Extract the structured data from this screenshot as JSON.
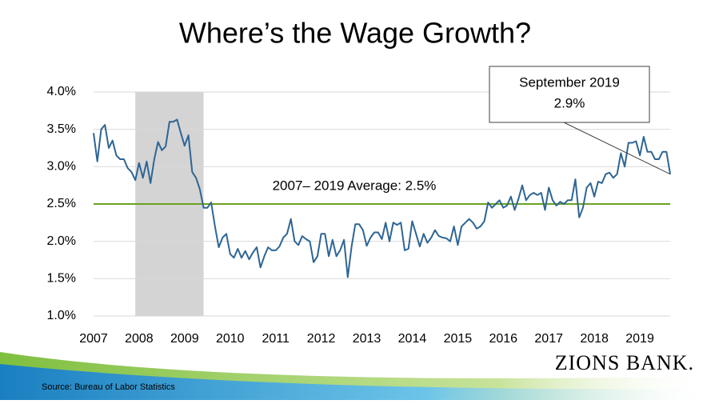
{
  "chart_data": {
    "type": "line",
    "title": "Where’s the Wage Growth?",
    "categories": [
      "2007",
      null,
      null,
      null,
      null,
      null,
      null,
      null,
      null,
      null,
      null,
      null,
      "2008",
      null,
      null,
      null,
      null,
      null,
      null,
      null,
      null,
      null,
      null,
      null,
      "2009",
      null,
      null,
      null,
      null,
      null,
      null,
      null,
      null,
      null,
      null,
      null,
      "2010",
      null,
      null,
      null,
      null,
      null,
      null,
      null,
      null,
      null,
      null,
      null,
      "2011",
      null,
      null,
      null,
      null,
      null,
      null,
      null,
      null,
      null,
      null,
      null,
      "2012",
      null,
      null,
      null,
      null,
      null,
      null,
      null,
      null,
      null,
      null,
      null,
      "2013",
      null,
      null,
      null,
      null,
      null,
      null,
      null,
      null,
      null,
      null,
      null,
      "2014",
      null,
      null,
      null,
      null,
      null,
      null,
      null,
      null,
      null,
      null,
      null,
      "2015",
      null,
      null,
      null,
      null,
      null,
      null,
      null,
      null,
      null,
      null,
      null,
      "2016",
      null,
      null,
      null,
      null,
      null,
      null,
      null,
      null,
      null,
      null,
      null,
      "2017",
      null,
      null,
      null,
      null,
      null,
      null,
      null,
      null,
      null,
      null,
      null,
      "2018",
      null,
      null,
      null,
      null,
      null,
      null,
      null,
      null,
      null,
      null,
      null,
      "2019",
      null,
      null,
      null,
      null,
      null,
      null,
      null,
      null
    ],
    "values": [
      3.45,
      3.07,
      3.5,
      3.56,
      3.25,
      3.35,
      3.15,
      3.1,
      3.1,
      2.98,
      2.93,
      2.82,
      3.05,
      2.85,
      3.07,
      2.78,
      3.1,
      3.33,
      3.22,
      3.27,
      3.6,
      3.6,
      3.63,
      3.45,
      3.28,
      3.42,
      2.93,
      2.85,
      2.7,
      2.45,
      2.45,
      2.52,
      2.2,
      1.92,
      2.05,
      2.1,
      1.83,
      1.78,
      1.9,
      1.78,
      1.87,
      1.76,
      1.85,
      1.92,
      1.65,
      1.8,
      1.92,
      1.88,
      1.88,
      1.93,
      2.05,
      2.1,
      2.3,
      2.0,
      1.95,
      2.07,
      2.03,
      2.0,
      1.72,
      1.8,
      2.1,
      2.1,
      1.8,
      2.02,
      1.8,
      1.88,
      2.02,
      1.52,
      1.93,
      2.23,
      2.23,
      2.15,
      1.94,
      2.05,
      2.12,
      2.12,
      2.03,
      2.25,
      2.0,
      2.25,
      2.22,
      2.25,
      1.88,
      1.9,
      2.27,
      2.1,
      1.93,
      2.1,
      1.98,
      2.05,
      2.15,
      2.07,
      2.05,
      2.04,
      2.0,
      2.2,
      1.95,
      2.2,
      2.25,
      2.3,
      2.25,
      2.17,
      2.2,
      2.27,
      2.52,
      2.45,
      2.5,
      2.55,
      2.45,
      2.48,
      2.6,
      2.42,
      2.57,
      2.75,
      2.55,
      2.62,
      2.65,
      2.62,
      2.65,
      2.42,
      2.72,
      2.55,
      2.48,
      2.53,
      2.5,
      2.55,
      2.55,
      2.83,
      2.32,
      2.45,
      2.72,
      2.78,
      2.6,
      2.8,
      2.78,
      2.9,
      2.92,
      2.85,
      2.9,
      3.18,
      3.0,
      3.32,
      3.32,
      3.34,
      3.15,
      3.4,
      3.2,
      3.2,
      3.1,
      3.1,
      3.2,
      3.2,
      2.9
    ],
    "color": "#2e6594",
    "ylim": [
      1,
      4
    ],
    "yticks": [
      {
        "value": 1,
        "label": "1.0%"
      },
      {
        "value": 1.5,
        "label": "1.5%"
      },
      {
        "value": 2,
        "label": "2.0%"
      },
      {
        "value": 2.5,
        "label": "2.5%"
      },
      {
        "value": 3,
        "label": "3.0%"
      },
      {
        "value": 3.5,
        "label": "3.5%"
      },
      {
        "value": 4,
        "label": "4.0%"
      }
    ],
    "grid": true,
    "shaded_range": {
      "start": 11,
      "end": 29,
      "color": "#d4d4d4"
    },
    "reference_line": {
      "value": 2.5,
      "label": "2007– 2019 Average: 2.5%",
      "color": "#6aa121"
    },
    "callout": [
      "September 2019",
      "2.9%"
    ],
    "source": "Source: Bureau of Labor Statistics",
    "logo": "ZIONS BANK."
  }
}
